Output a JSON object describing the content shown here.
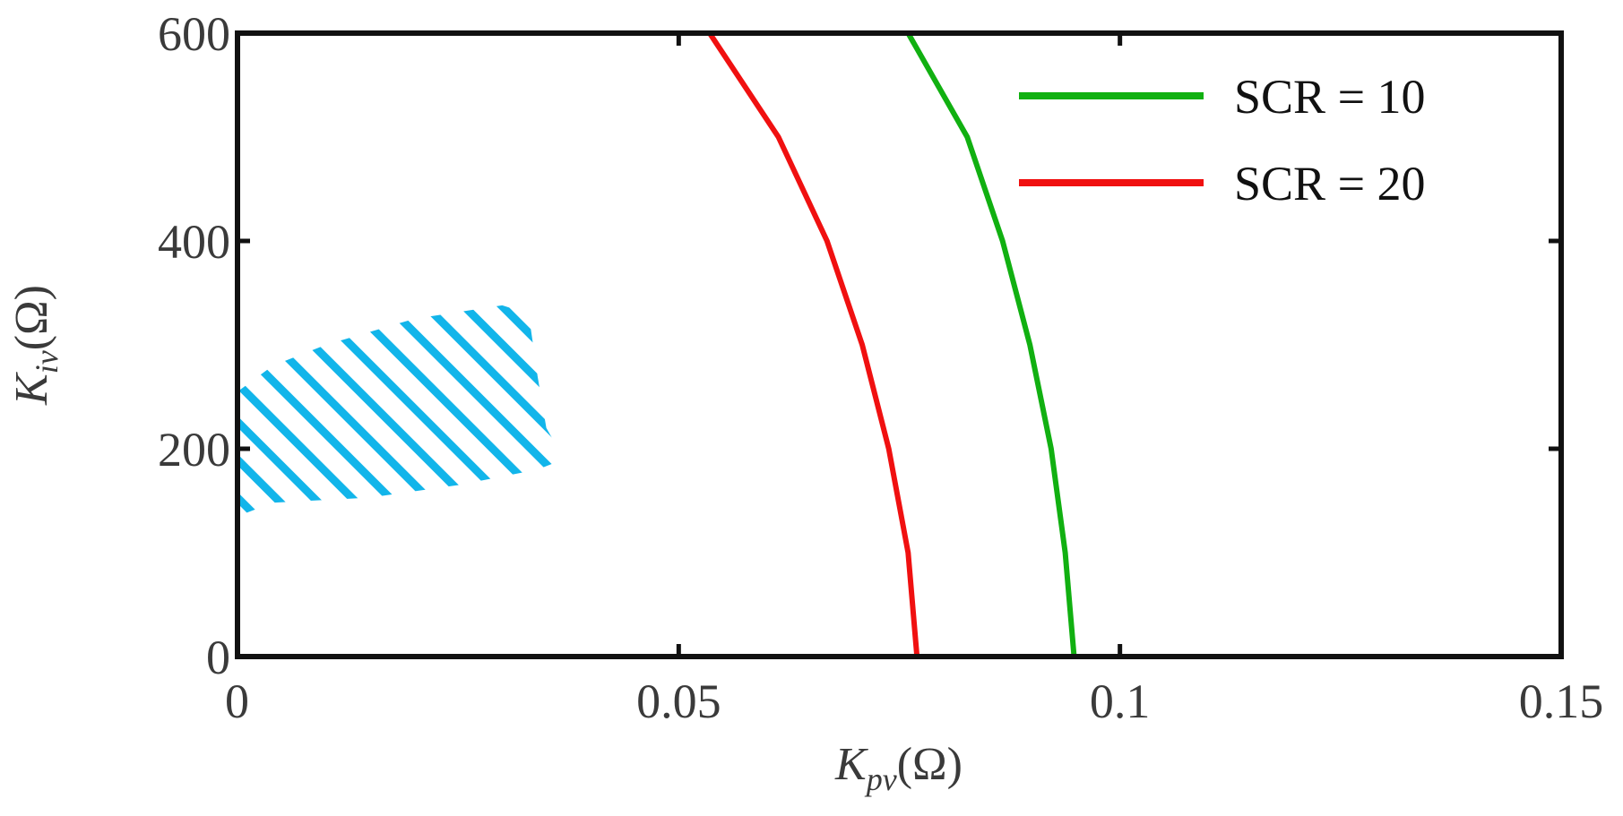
{
  "chart_data": {
    "type": "line",
    "xlabel": {
      "main": "K",
      "sub": "pv",
      "unit": "(Ω)"
    },
    "ylabel": {
      "main": "K",
      "sub": "iv",
      "unit": "(Ω)"
    },
    "xlim": [
      0,
      0.15
    ],
    "ylim": [
      0,
      600
    ],
    "xticks": [
      0,
      0.05,
      0.1,
      0.15
    ],
    "xtick_labels": [
      "0",
      "0.05",
      "0.1",
      "0.15"
    ],
    "yticks": [
      0,
      200,
      400,
      600
    ],
    "ytick_labels": [
      "0",
      "200",
      "400",
      "600"
    ],
    "grid": false,
    "legend_position": "top-right",
    "series": [
      {
        "name": "SCR = 10",
        "color": "#11b011",
        "points": [
          [
            0.0948,
            0
          ],
          [
            0.0938,
            100
          ],
          [
            0.0922,
            200
          ],
          [
            0.0898,
            300
          ],
          [
            0.0867,
            400
          ],
          [
            0.0827,
            500
          ],
          [
            0.076,
            600
          ]
        ]
      },
      {
        "name": "SCR = 20",
        "color": "#f01010",
        "points": [
          [
            0.077,
            0
          ],
          [
            0.076,
            100
          ],
          [
            0.0738,
            200
          ],
          [
            0.0708,
            300
          ],
          [
            0.0668,
            400
          ],
          [
            0.0613,
            500
          ],
          [
            0.0535,
            600
          ]
        ]
      }
    ],
    "hatched_region": {
      "color": "#12b5ea",
      "pattern": "diagonal-hatch",
      "outline": [
        [
          0,
          135
        ],
        [
          0.004,
          148
        ],
        [
          0.015,
          153
        ],
        [
          0.025,
          165
        ],
        [
          0.034,
          180
        ],
        [
          0.037,
          190
        ],
        [
          0.035,
          220
        ],
        [
          0.034,
          270
        ],
        [
          0.033,
          330
        ],
        [
          0.03,
          338
        ],
        [
          0.02,
          325
        ],
        [
          0.01,
          300
        ],
        [
          0.004,
          280
        ],
        [
          0,
          255
        ]
      ]
    }
  }
}
